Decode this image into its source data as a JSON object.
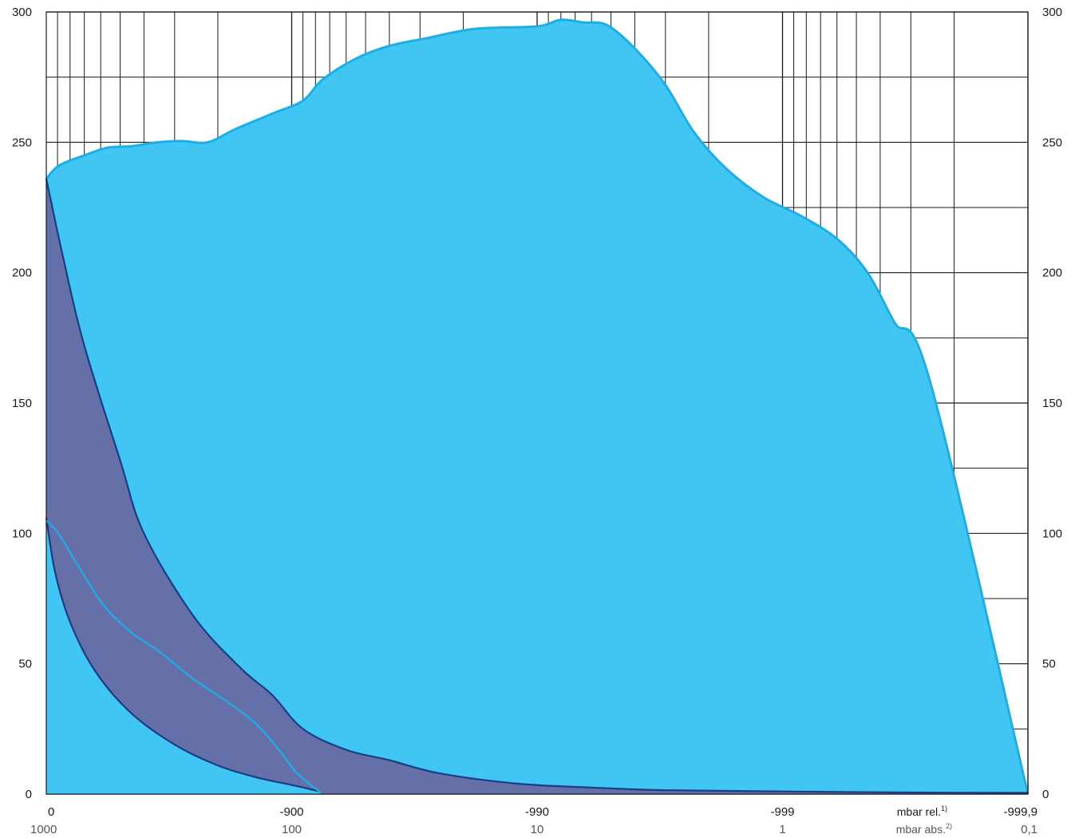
{
  "chart_data": {
    "type": "area",
    "y_axis": {
      "range": [
        0,
        300
      ],
      "tick_labels": [
        "0",
        "50",
        "100",
        "150",
        "200",
        "250",
        "300"
      ],
      "minor_step": 25,
      "shown_left_and_right": true
    },
    "x_axis": {
      "scale": "log",
      "variable": "mbar abs.",
      "range": [
        1000,
        0.1
      ],
      "ticks": [
        {
          "abs": 1000,
          "rel_label": "0",
          "abs_label": "1000"
        },
        {
          "abs": 100,
          "rel_label": "-900",
          "abs_label": "100"
        },
        {
          "abs": 10,
          "rel_label": "-990",
          "abs_label": "10"
        },
        {
          "abs": 1,
          "rel_label": "-999",
          "abs_label": "1"
        },
        {
          "abs": 0.1,
          "rel_label": "-999,9",
          "abs_label": "0,1"
        }
      ],
      "unit_rel": "mbar rel.",
      "unit_rel_sup": "1)",
      "unit_abs": "mbar abs.",
      "unit_abs_sup": "2)"
    },
    "grid": true,
    "colors": {
      "light_fill": "#41c6f3",
      "light_line": "#1eaee6",
      "dark_fill": "#6670a8",
      "dark_line": "#1a3c86",
      "grid": "#1a1a1a"
    },
    "series": [
      {
        "style": "light-area",
        "points": [
          [
            1000,
            236
          ],
          [
            890,
            241
          ],
          [
            700,
            245
          ],
          [
            560,
            248
          ],
          [
            450,
            248.5
          ],
          [
            350,
            250
          ],
          [
            280,
            250.5
          ],
          [
            220,
            250
          ],
          [
            170,
            255
          ],
          [
            120,
            261
          ],
          [
            90,
            266
          ],
          [
            75,
            274
          ],
          [
            55,
            282
          ],
          [
            40,
            287
          ],
          [
            28,
            290
          ],
          [
            18,
            293.5
          ],
          [
            10,
            294.5
          ],
          [
            8,
            297
          ],
          [
            6.5,
            296
          ],
          [
            5.2,
            295
          ],
          [
            4,
            286
          ],
          [
            3,
            272
          ],
          [
            2.3,
            254
          ],
          [
            1.7,
            240
          ],
          [
            1.2,
            229
          ],
          [
            0.85,
            222
          ],
          [
            0.6,
            213
          ],
          [
            0.45,
            200
          ],
          [
            0.35,
            181
          ],
          [
            0.25,
            158
          ],
          [
            0.1,
            0
          ]
        ]
      },
      {
        "style": "dark-band-upper",
        "points": [
          [
            1000,
            236
          ],
          [
            850,
            205
          ],
          [
            700,
            172
          ],
          [
            500,
            128
          ],
          [
            400,
            100
          ],
          [
            250,
            68
          ],
          [
            160,
            48
          ],
          [
            120,
            38
          ],
          [
            90,
            25
          ],
          [
            60,
            17
          ],
          [
            40,
            13
          ],
          [
            25,
            8
          ],
          [
            12,
            4
          ],
          [
            6,
            2.5
          ],
          [
            3,
            1.5
          ],
          [
            1,
            1
          ],
          [
            0.3,
            0.6
          ],
          [
            0.1,
            0.5
          ]
        ]
      },
      {
        "style": "dark-band-lower",
        "points": [
          [
            1000,
            106
          ],
          [
            920,
            85
          ],
          [
            800,
            66
          ],
          [
            630,
            47
          ],
          [
            450,
            31
          ],
          [
            300,
            19
          ],
          [
            200,
            11
          ],
          [
            140,
            6.5
          ],
          [
            100,
            3.5
          ],
          [
            85,
            2
          ],
          [
            77,
            1
          ]
        ]
      },
      {
        "style": "light-line",
        "points": [
          [
            1000,
            105
          ],
          [
            880,
            99
          ],
          [
            600,
            74
          ],
          [
            450,
            62
          ],
          [
            350,
            55
          ],
          [
            250,
            44
          ],
          [
            180,
            35
          ],
          [
            140,
            27
          ],
          [
            115,
            18
          ],
          [
            95,
            8
          ],
          [
            76,
            0.5
          ]
        ]
      }
    ]
  }
}
